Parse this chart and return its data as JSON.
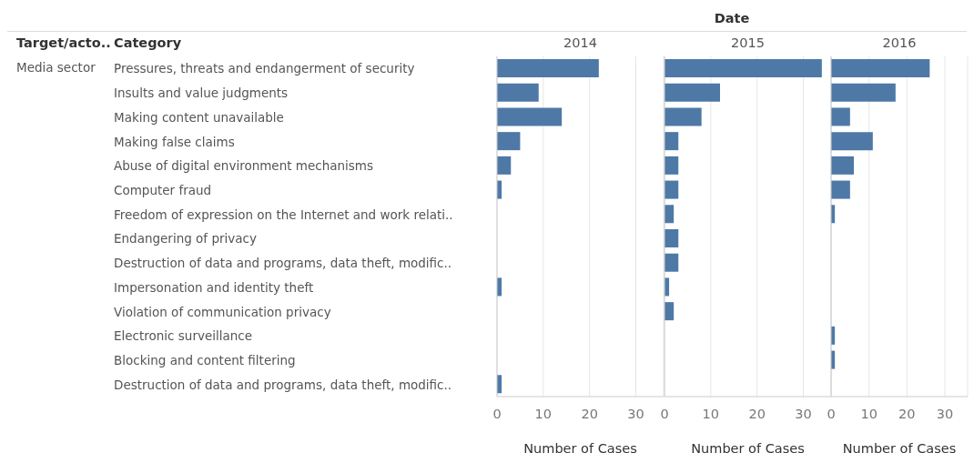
{
  "chart_data": [
    {
      "type": "bar",
      "orientation": "horizontal",
      "title": "2014",
      "xlabel": "Number of Cases",
      "ylabel": "Category",
      "annotations": [
        "Date",
        "Target/acto..",
        "Media sector"
      ],
      "categories": [
        "Pressures, threats and endangerment of security",
        "Insults and value judgments",
        "Making content unavailable",
        "Making false claims",
        "Abuse of digital environment mechanisms",
        "Computer fraud",
        "Freedom of expression on the Internet and work relati..",
        "Endangering of privacy",
        "Destruction of data and programs, data theft, modific..",
        "Impersonation and identity theft",
        "Violation of communication privacy",
        "Electronic surveillance",
        "Blocking and content filtering",
        "Destruction of data and programs, data theft, modific.."
      ],
      "values": [
        22,
        9,
        14,
        5,
        3,
        1,
        null,
        null,
        null,
        1,
        null,
        null,
        null,
        1
      ],
      "color": "#4e79a7",
      "xlim": [
        0,
        36
      ],
      "xticks": [
        0,
        10,
        20,
        30
      ],
      "grid": "x"
    },
    {
      "type": "bar",
      "orientation": "horizontal",
      "title": "2015",
      "xlabel": "Number of Cases",
      "tick_labels": "x",
      "values": [
        34,
        12,
        8,
        3,
        3,
        3,
        2,
        3,
        3,
        1,
        2,
        null,
        null,
        null
      ],
      "color": "#4e79a7",
      "xlim": [
        0,
        36
      ],
      "xticks": [
        0,
        10,
        20,
        30
      ],
      "grid": "x"
    },
    {
      "type": "bar",
      "orientation": "horizontal",
      "title": "2016",
      "xlabel": "Number of Cases",
      "tick_labels": "x",
      "values": [
        26,
        17,
        5,
        11,
        6,
        5,
        1,
        null,
        null,
        null,
        null,
        1,
        1,
        null
      ],
      "color": "#4e79a7",
      "xlim": [
        0,
        36
      ],
      "xticks": [
        0,
        10,
        20,
        30
      ],
      "grid": "x"
    }
  ]
}
